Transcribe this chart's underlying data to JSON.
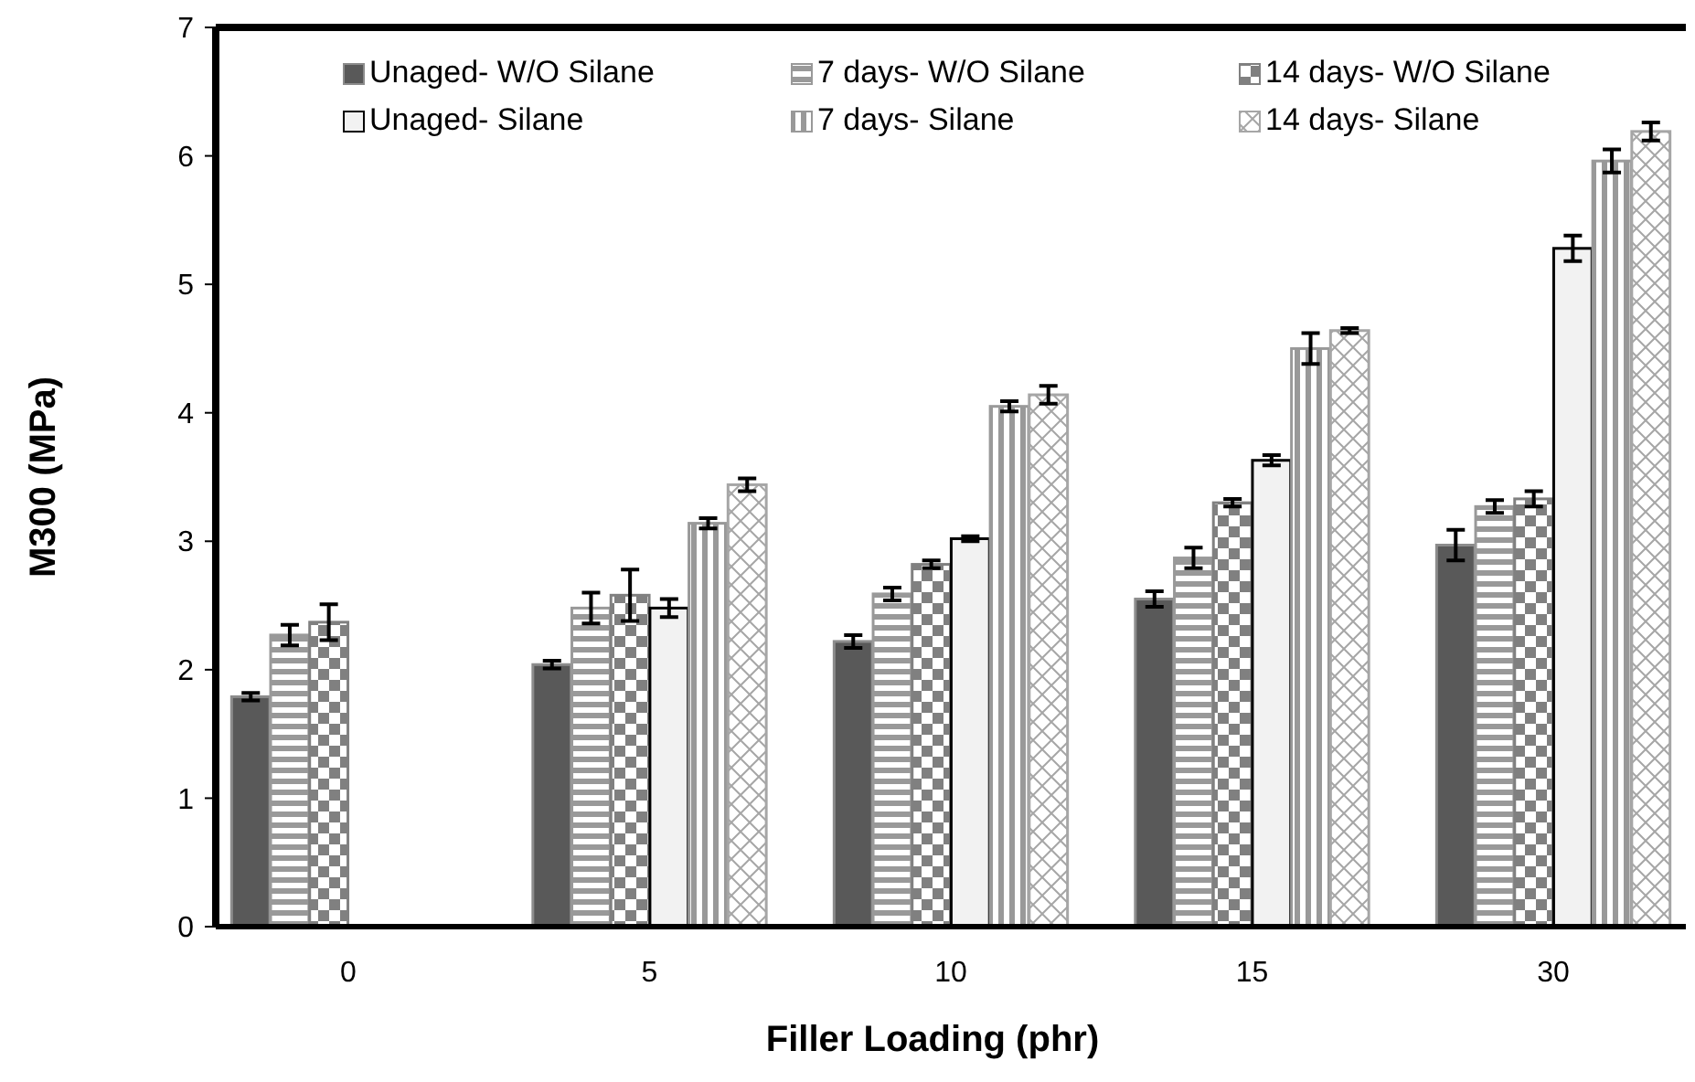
{
  "chart_data": {
    "type": "bar",
    "xlabel": "Filler Loading (phr)",
    "ylabel": "M300 (MPa)",
    "categories": [
      "0",
      "5",
      "10",
      "15",
      "30"
    ],
    "ylim": [
      0,
      7
    ],
    "yticks": [
      0,
      1,
      2,
      3,
      4,
      5,
      6,
      7
    ],
    "grid": false,
    "legend": "top",
    "series": [
      {
        "name": "Unaged- W/O Silane",
        "color": "#595959",
        "values": [
          1.79,
          2.04,
          2.22,
          2.55,
          2.97
        ],
        "errors": [
          0.03,
          0.03,
          0.05,
          0.06,
          0.12
        ]
      },
      {
        "name": "7 days- W/O Silane",
        "color": "#999999",
        "values": [
          2.27,
          2.48,
          2.59,
          2.87,
          3.27
        ],
        "errors": [
          0.08,
          0.12,
          0.05,
          0.08,
          0.05
        ]
      },
      {
        "name": "14 days- W/O Silane",
        "color": "#808080",
        "values": [
          2.37,
          2.58,
          2.82,
          3.3,
          3.33
        ],
        "errors": [
          0.14,
          0.2,
          0.03,
          0.03,
          0.06
        ]
      },
      {
        "name": "Unaged- Silane",
        "color": "#f2f2f2",
        "values": [
          null,
          2.48,
          3.02,
          3.63,
          5.28
        ],
        "errors": [
          null,
          0.07,
          0.02,
          0.04,
          0.1
        ]
      },
      {
        "name": "7 days- Silane",
        "color": "#999999",
        "values": [
          null,
          3.14,
          4.05,
          4.5,
          5.96
        ],
        "errors": [
          null,
          0.04,
          0.04,
          0.12,
          0.09
        ]
      },
      {
        "name": "14 days- Silane",
        "color": "#a6a6a6",
        "values": [
          null,
          3.44,
          4.14,
          4.64,
          6.19
        ],
        "errors": [
          null,
          0.05,
          0.07,
          0.02,
          0.07
        ]
      }
    ]
  }
}
